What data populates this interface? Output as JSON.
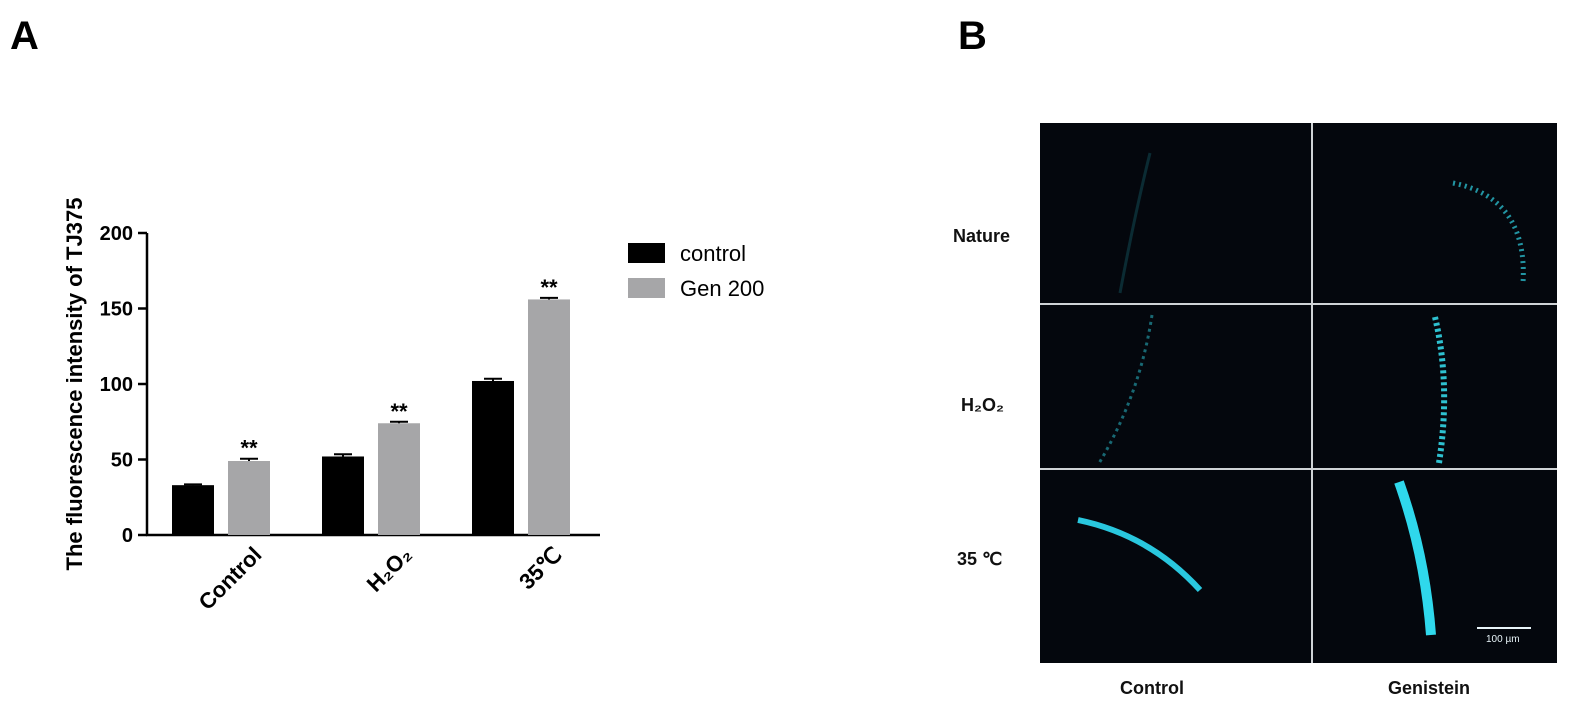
{
  "panel_a": {
    "letter": "A"
  },
  "panel_b": {
    "letter": "B",
    "row_labels": [
      "Nature",
      "H₂O₂",
      "35 ℃"
    ],
    "col_labels": [
      "Control",
      "Genistein"
    ],
    "scale_bar_label": "100 µm",
    "colors": {
      "background": "#04070d",
      "fluorescence": "#2ad4e8",
      "gridline": "#cfd3d6"
    }
  },
  "chart_data": {
    "type": "bar",
    "categories": [
      "Control",
      "H₂O₂",
      "35℃"
    ],
    "series": [
      {
        "name": "control",
        "color": "#000000",
        "values": [
          33,
          52,
          102
        ],
        "errors": [
          0.5,
          1.5,
          1.5
        ]
      },
      {
        "name": "Gen 200",
        "color": "#a6a6a8",
        "values": [
          49,
          74,
          156
        ],
        "errors": [
          1.5,
          1.0,
          1.0
        ]
      }
    ],
    "significance": [
      [
        "",
        "**"
      ],
      [
        "",
        "**"
      ],
      [
        "",
        "**"
      ]
    ],
    "ylabel": "The fluorescence intensity of TJ375",
    "xlabel": "",
    "ylim": [
      0,
      200
    ],
    "yticks": [
      "0",
      "50",
      "100",
      "150",
      "200"
    ],
    "ytick_values": [
      0,
      50,
      100,
      150,
      200
    ],
    "legend_position": "top-right",
    "grid": false
  }
}
